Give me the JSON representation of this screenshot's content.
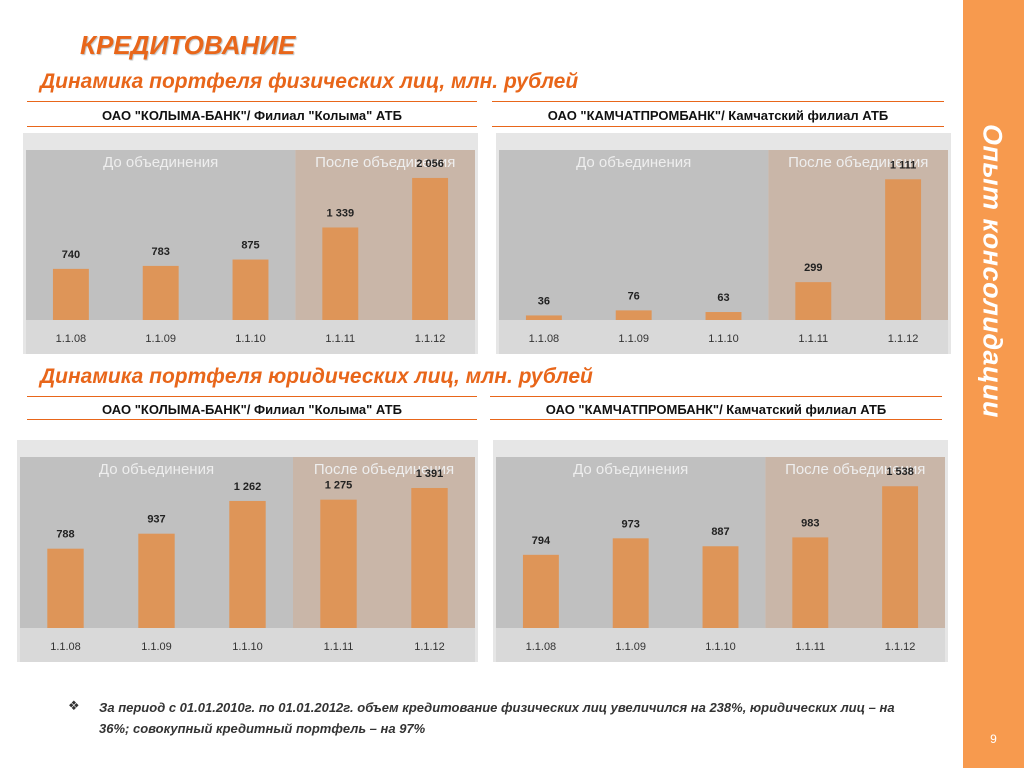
{
  "title": "КРЕДИТОВАНИЕ",
  "sidebar_text": "Опыт консолидации",
  "page_number": "9",
  "section_individuals": "Динамика портфеля физических лиц, млн. рублей",
  "section_legal": "Динамика портфеля юридических лиц, млн. рублей",
  "bank_left": "ОАО \"КОЛЫМА-БАНК\"/ Филиал \"Колыма\" АТБ",
  "bank_right": "ОАО \"КАМЧАТПРОМБАНК\"/ Камчатский филиал АТБ",
  "period_before": "До объединения",
  "period_after": "После объединения",
  "footnote_bullet": "❖",
  "footnote": "За период с 01.01.2010г. по 01.01.2012г.  объем кредитование физических лиц  увеличился на 238%, юридических лиц – на 36%; совокупный кредитный портфель – на 97%",
  "colors": {
    "accent": "#e8661a",
    "bar": "#de9558",
    "panel_before": "#c0c0c0",
    "panel_after": "#c9b6a8",
    "sidebar": "#f79a4e"
  },
  "chart_data": [
    {
      "type": "bar",
      "categories": [
        "1.1.08",
        "1.1.09",
        "1.1.10",
        "1.1.11",
        "1.1.12"
      ],
      "values": [
        740,
        783,
        875,
        1339,
        2056
      ],
      "labels": [
        "740",
        "783",
        "875",
        "1 339",
        "2 056"
      ],
      "ylim": [
        0,
        2200
      ]
    },
    {
      "type": "bar",
      "categories": [
        "1.1.08",
        "1.1.09",
        "1.1.10",
        "1.1.11",
        "1.1.12"
      ],
      "values": [
        36,
        76,
        63,
        299,
        1111
      ],
      "labels": [
        "36",
        "76",
        "63",
        "299",
        "1 111"
      ],
      "ylim": [
        0,
        1200
      ]
    },
    {
      "type": "bar",
      "categories": [
        "1.1.08",
        "1.1.09",
        "1.1.10",
        "1.1.11",
        "1.1.12"
      ],
      "values": [
        788,
        937,
        1262,
        1275,
        1391
      ],
      "labels": [
        "788",
        "937",
        "1 262",
        "1 275",
        "1 391"
      ],
      "ylim": [
        0,
        1520
      ]
    },
    {
      "type": "bar",
      "categories": [
        "1.1.08",
        "1.1.09",
        "1.1.10",
        "1.1.11",
        "1.1.12"
      ],
      "values": [
        794,
        973,
        887,
        983,
        1538
      ],
      "labels": [
        "794",
        "973",
        "887",
        "983",
        "1 538"
      ],
      "ylim": [
        0,
        1660
      ]
    }
  ]
}
